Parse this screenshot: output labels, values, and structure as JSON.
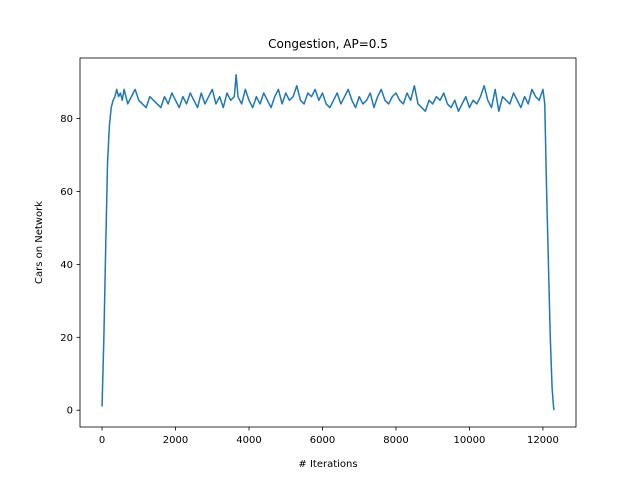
{
  "chart_data": {
    "type": "line",
    "title": "Congestion, AP=0.5",
    "xlabel": "# Iterations",
    "ylabel": "Cars on Network",
    "xlim": [
      -600,
      12900
    ],
    "ylim": [
      -4.6,
      96.6
    ],
    "xticks": [
      0,
      2000,
      4000,
      6000,
      8000,
      10000,
      12000
    ],
    "yticks": [
      0,
      20,
      40,
      60,
      80
    ],
    "xtick_labels": [
      "0",
      "2000",
      "4000",
      "6000",
      "8000",
      "10000",
      "12000"
    ],
    "ytick_labels": [
      "0",
      "20",
      "40",
      "60",
      "80"
    ],
    "grid": false,
    "series": [
      {
        "color": "#1f77b4",
        "x": [
          0,
          50,
          100,
          150,
          200,
          250,
          300,
          350,
          400,
          450,
          500,
          550,
          600,
          700,
          800,
          900,
          1000,
          1100,
          1200,
          1300,
          1400,
          1500,
          1600,
          1700,
          1800,
          1900,
          2000,
          2100,
          2200,
          2300,
          2400,
          2500,
          2600,
          2700,
          2800,
          2900,
          3000,
          3100,
          3200,
          3300,
          3400,
          3500,
          3600,
          3650,
          3700,
          3800,
          3900,
          4000,
          4100,
          4200,
          4300,
          4400,
          4500,
          4600,
          4700,
          4800,
          4900,
          5000,
          5100,
          5200,
          5300,
          5400,
          5500,
          5600,
          5700,
          5800,
          5900,
          6000,
          6100,
          6200,
          6300,
          6400,
          6500,
          6600,
          6700,
          6800,
          6900,
          7000,
          7100,
          7200,
          7300,
          7400,
          7500,
          7600,
          7700,
          7800,
          7900,
          8000,
          8100,
          8200,
          8300,
          8400,
          8500,
          8600,
          8700,
          8800,
          8900,
          9000,
          9100,
          9200,
          9300,
          9400,
          9500,
          9600,
          9700,
          9800,
          9900,
          10000,
          10100,
          10200,
          10300,
          10400,
          10500,
          10600,
          10700,
          10800,
          10900,
          11000,
          11100,
          11200,
          11300,
          11400,
          11500,
          11600,
          11700,
          11800,
          11900,
          12000,
          12050,
          12100,
          12150,
          12200,
          12250,
          12280,
          12300
        ],
        "y": [
          1,
          20,
          45,
          68,
          78,
          83,
          85,
          86,
          88,
          86,
          87,
          85,
          88,
          84,
          86,
          88,
          85,
          84,
          83,
          86,
          85,
          84,
          83,
          86,
          84,
          87,
          85,
          83,
          86,
          84,
          87,
          85,
          83,
          87,
          84,
          86,
          88,
          84,
          86,
          83,
          87,
          85,
          86,
          92,
          86,
          84,
          88,
          85,
          83,
          86,
          84,
          87,
          85,
          83,
          86,
          88,
          84,
          87,
          85,
          86,
          89,
          85,
          84,
          87,
          86,
          88,
          85,
          87,
          84,
          83,
          85,
          87,
          84,
          86,
          88,
          85,
          83,
          86,
          84,
          85,
          87,
          83,
          86,
          88,
          85,
          84,
          86,
          87,
          85,
          84,
          87,
          85,
          89,
          84,
          83,
          82,
          85,
          84,
          86,
          85,
          87,
          84,
          83,
          85,
          82,
          84,
          86,
          83,
          85,
          84,
          86,
          89,
          85,
          83,
          88,
          82,
          86,
          85,
          84,
          87,
          85,
          83,
          86,
          84,
          88,
          86,
          85,
          88,
          84,
          60,
          40,
          20,
          6,
          2,
          0
        ]
      }
    ]
  }
}
